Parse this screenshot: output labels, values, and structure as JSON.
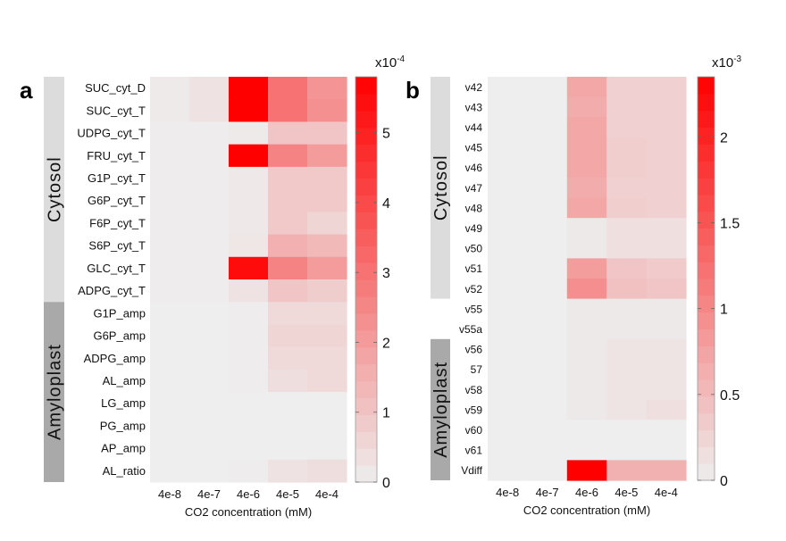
{
  "chart_data": [
    {
      "type": "heatmap",
      "panel": "a",
      "xlabel": "CO2 concentration (mM)",
      "categories": [
        "4e-8",
        "4e-7",
        "4e-6",
        "4e-5",
        "4e-4"
      ],
      "rows": [
        "SUC_cyt_D",
        "SUC_cyt_T",
        "UDPG_cyt_T",
        "FRU_cyt_T",
        "G1P_cyt_T",
        "G6P_cyt_T",
        "F6P_cyt_T",
        "S6P_cyt_T",
        "GLC_cyt_T",
        "ADPG_cyt_T",
        "G1P_amp",
        "G6P_amp",
        "ADPG_amp",
        "AL_amp",
        "LG_amp",
        "PG_amp",
        "AP_amp",
        "AL_ratio"
      ],
      "groups": [
        {
          "label": "Cytosol",
          "start": 0,
          "end": 9,
          "color": "#dcdcdc"
        },
        {
          "label": "Amyloplast",
          "start": 10,
          "end": 17,
          "color": "#a9a9a9"
        }
      ],
      "colorbar": {
        "exponent_label": "x10",
        "exponent": "-4",
        "min": 0,
        "max": 5.8,
        "ticks": [
          0,
          1,
          2,
          3,
          4,
          5
        ]
      },
      "colors": {
        "low": "#eeeeee",
        "high": "#ff0000"
      },
      "values": [
        [
          0.1,
          0.3,
          5.8,
          3.0,
          2.2
        ],
        [
          0.1,
          0.3,
          5.8,
          3.0,
          2.3
        ],
        [
          0.05,
          0.05,
          0.1,
          1.0,
          1.0
        ],
        [
          0.05,
          0.05,
          5.8,
          2.6,
          2.0
        ],
        [
          0.05,
          0.05,
          0.15,
          0.9,
          0.9
        ],
        [
          0.05,
          0.05,
          0.15,
          0.9,
          0.9
        ],
        [
          0.05,
          0.05,
          0.15,
          0.9,
          0.6
        ],
        [
          0.05,
          0.05,
          0.2,
          1.5,
          1.3
        ],
        [
          0.05,
          0.05,
          5.5,
          2.6,
          2.0
        ],
        [
          0.05,
          0.05,
          0.3,
          1.0,
          0.8
        ],
        [
          0.0,
          0.0,
          0.05,
          0.5,
          0.5
        ],
        [
          0.0,
          0.0,
          0.05,
          0.6,
          0.6
        ],
        [
          0.0,
          0.0,
          0.05,
          0.5,
          0.5
        ],
        [
          0.0,
          0.0,
          0.05,
          0.4,
          0.5
        ],
        [
          0.0,
          0.0,
          0.0,
          0.0,
          0.0
        ],
        [
          0.0,
          0.0,
          0.0,
          0.0,
          0.0
        ],
        [
          0.0,
          0.0,
          0.0,
          0.0,
          0.0
        ],
        [
          0.0,
          0.0,
          0.05,
          0.3,
          0.4
        ]
      ]
    },
    {
      "type": "heatmap",
      "panel": "b",
      "xlabel": "CO2 concentration (mM)",
      "categories": [
        "4e-8",
        "4e-7",
        "4e-6",
        "4e-5",
        "4e-4"
      ],
      "rows": [
        "v42",
        "v43",
        "v44",
        "v45",
        "v46",
        "v47",
        "v48",
        "v49",
        "v50",
        "v51",
        "v52",
        "v55",
        "v55a",
        "v56",
        "57",
        "v58",
        "v59",
        "v60",
        "v61",
        "Vdiff"
      ],
      "groups": [
        {
          "label": "Cytosol",
          "start": 0,
          "end": 10,
          "color": "#dcdcdc"
        },
        {
          "label": "Amyloplast",
          "start": 13,
          "end": 19,
          "color": "#a9a9a9"
        }
      ],
      "colorbar": {
        "exponent_label": "x10",
        "exponent": "-3",
        "min": 0,
        "max": 2.35,
        "ticks": [
          0,
          0.5,
          1,
          1.5,
          2
        ]
      },
      "colors": {
        "low": "#eeeeee",
        "high": "#ff0000"
      },
      "values": [
        [
          0.0,
          0.0,
          0.7,
          0.3,
          0.3
        ],
        [
          0.0,
          0.0,
          0.65,
          0.3,
          0.3
        ],
        [
          0.0,
          0.0,
          0.7,
          0.3,
          0.3
        ],
        [
          0.0,
          0.0,
          0.7,
          0.32,
          0.3
        ],
        [
          0.0,
          0.0,
          0.7,
          0.32,
          0.3
        ],
        [
          0.0,
          0.0,
          0.65,
          0.3,
          0.3
        ],
        [
          0.0,
          0.0,
          0.7,
          0.32,
          0.3
        ],
        [
          0.0,
          0.0,
          0.05,
          0.15,
          0.15
        ],
        [
          0.0,
          0.0,
          0.05,
          0.15,
          0.15
        ],
        [
          0.0,
          0.0,
          0.8,
          0.4,
          0.35
        ],
        [
          0.0,
          0.0,
          0.95,
          0.45,
          0.4
        ],
        [
          0.0,
          0.0,
          0.05,
          0.05,
          0.05
        ],
        [
          0.0,
          0.0,
          0.05,
          0.05,
          0.05
        ],
        [
          0.0,
          0.0,
          0.05,
          0.1,
          0.1
        ],
        [
          0.0,
          0.0,
          0.05,
          0.1,
          0.1
        ],
        [
          0.0,
          0.0,
          0.05,
          0.1,
          0.1
        ],
        [
          0.0,
          0.0,
          0.05,
          0.1,
          0.15
        ],
        [
          0.0,
          0.0,
          0.0,
          0.0,
          0.0
        ],
        [
          0.0,
          0.0,
          0.0,
          0.0,
          0.0
        ],
        [
          0.0,
          0.0,
          2.35,
          0.6,
          0.6
        ]
      ]
    }
  ]
}
